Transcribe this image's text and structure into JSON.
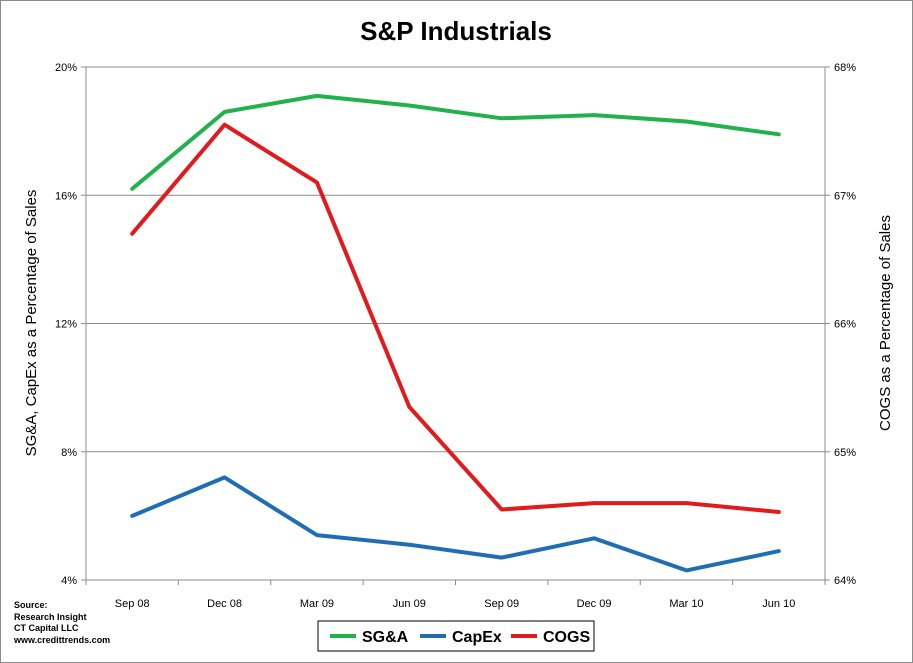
{
  "chart_data": {
    "type": "line",
    "title": "S&P Industrials",
    "categories": [
      "Sep 08",
      "Dec 08",
      "Mar 09",
      "Jun 09",
      "Sep 09",
      "Dec 09",
      "Mar 10",
      "Jun 10"
    ],
    "ylabel_left": "SG&A, CapEx as a Percentage of Sales",
    "ylabel_right": "COGS as a Percentage of Sales",
    "ylim_left": [
      4,
      20
    ],
    "ylim_right": [
      64,
      68
    ],
    "yticks_left": [
      "4%",
      "8%",
      "12%",
      "16%",
      "20%"
    ],
    "yticks_right": [
      "64%",
      "65%",
      "66%",
      "67%",
      "68%"
    ],
    "grid": true,
    "legend_position": "bottom",
    "series": [
      {
        "name": "SG&A",
        "axis": "left",
        "color": "#22b24c",
        "values": [
          16.2,
          18.6,
          19.1,
          18.8,
          18.4,
          18.5,
          18.3,
          17.9
        ]
      },
      {
        "name": "CapEx",
        "axis": "left",
        "color": "#1f6eb5",
        "values": [
          6.0,
          7.2,
          5.4,
          5.1,
          4.7,
          5.3,
          4.3,
          4.9
        ]
      },
      {
        "name": "COGS",
        "axis": "right",
        "color": "#e31a1c",
        "values": [
          66.7,
          67.55,
          67.1,
          65.35,
          64.55,
          64.6,
          64.6,
          64.53
        ]
      }
    ]
  },
  "source": {
    "heading": "Source:",
    "lines": [
      "Research Insight",
      "CT Capital LLC",
      "www.credittrends.com"
    ]
  }
}
